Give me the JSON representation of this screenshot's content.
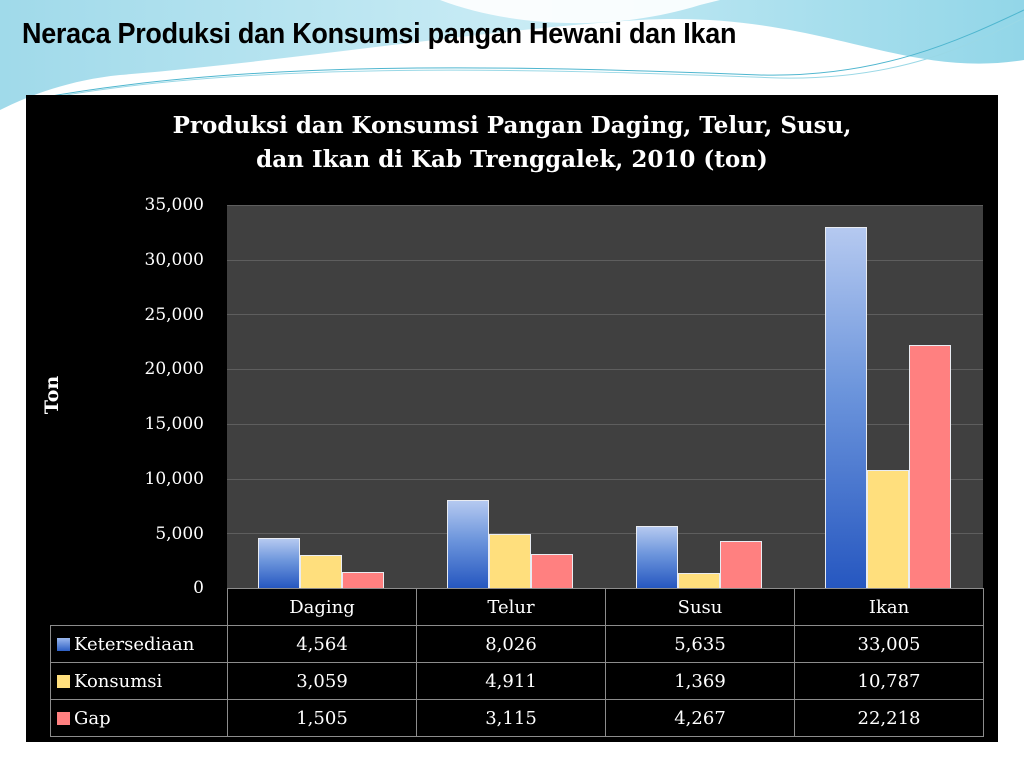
{
  "slide": {
    "title": "Neraca Produksi dan Konsumsi pangan Hewani dan Ikan"
  },
  "chart_data": {
    "type": "bar",
    "title": "Produksi dan Konsumsi Pangan Daging, Telur, Susu, dan Ikan  di Kab Trenggalek, 2010 (ton)",
    "title_lines": [
      "Produksi dan Konsumsi Pangan Daging, Telur, Susu,",
      "dan Ikan  di Kab Trenggalek, 2010 (ton)"
    ],
    "xlabel": "",
    "ylabel": "Ton",
    "ylim": [
      0,
      35000
    ],
    "yticks": [
      "35,000",
      "30,000",
      "25,000",
      "20,000",
      "15,000",
      "10,000",
      "5,000",
      "0"
    ],
    "grid": true,
    "legend_position": "data-table",
    "categories": [
      "Daging",
      "Telur",
      "Susu",
      "Ikan"
    ],
    "series": [
      {
        "name": "Ketersediaan",
        "color": "#4a7bd6",
        "values": [
          4564,
          8026,
          5635,
          33005
        ],
        "labels": [
          "4,564",
          "8,026",
          "5,635",
          "33,005"
        ]
      },
      {
        "name": "Konsumsi",
        "color": "#ffdf7d",
        "values": [
          3059,
          4911,
          1369,
          10787
        ],
        "labels": [
          "3,059",
          "4,911",
          "1,369",
          "10,787"
        ]
      },
      {
        "name": "Gap",
        "color": "#ff8080",
        "values": [
          1505,
          3115,
          4267,
          22218
        ],
        "labels": [
          "1,505",
          "3,115",
          "4,267",
          "22,218"
        ]
      }
    ]
  }
}
